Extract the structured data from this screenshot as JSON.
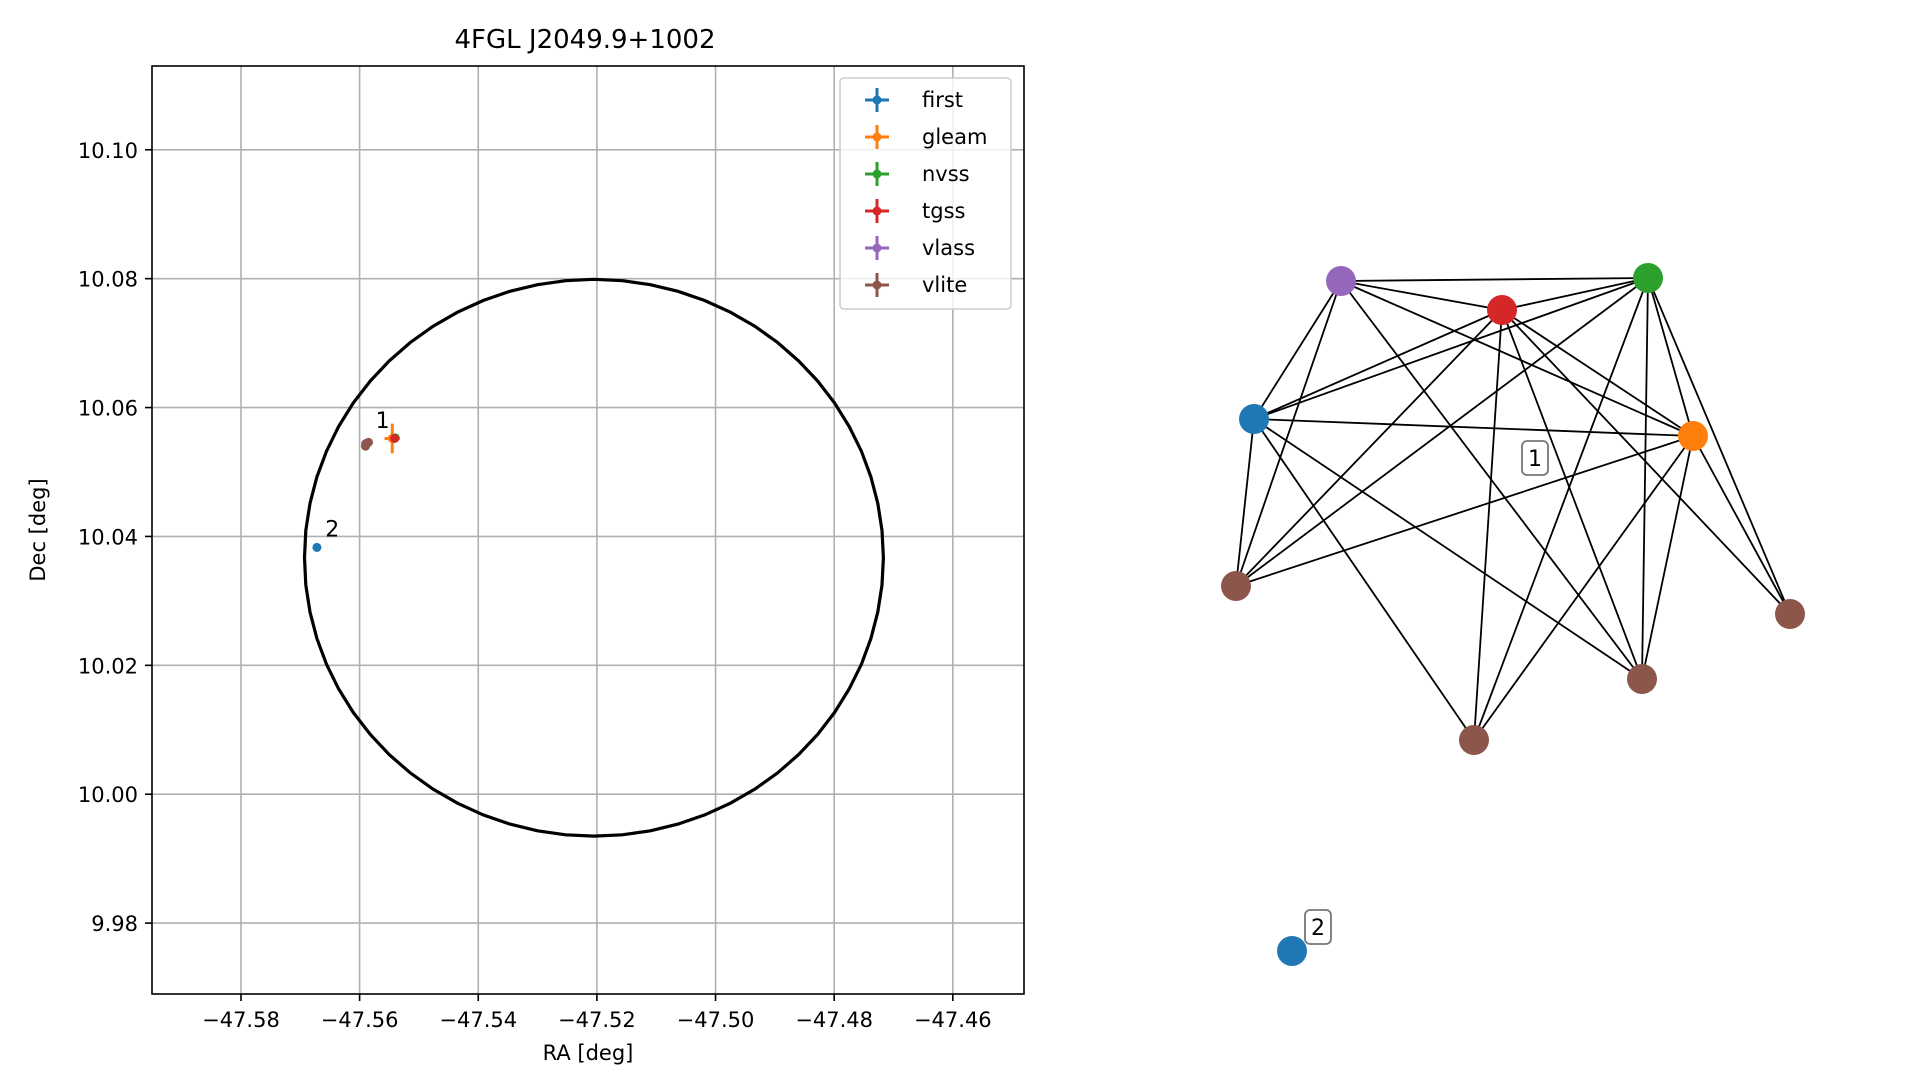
{
  "colors": {
    "first": "#1f77b4",
    "gleam": "#ff7f0e",
    "nvss": "#2ca02c",
    "tgss": "#d62728",
    "vlass": "#9467bd",
    "vlite": "#8c564b",
    "grid": "#b0b0b0",
    "ellipse": "#000000"
  },
  "chart_data": [
    {
      "type": "scatter",
      "title": "4FGL J2049.9+1002",
      "xlabel": "RA [deg]",
      "ylabel": "Dec [deg]",
      "xlim": [
        -47.595,
        -47.448
      ],
      "ylim": [
        9.969,
        10.113
      ],
      "xticks": [
        -47.58,
        -47.56,
        -47.54,
        -47.52,
        -47.5,
        -47.48,
        -47.46
      ],
      "xtick_labels": [
        "−47.58",
        "−47.56",
        "−47.54",
        "−47.52",
        "−47.50",
        "−47.48",
        "−47.46"
      ],
      "yticks": [
        9.98,
        10.0,
        10.02,
        10.04,
        10.06,
        10.08,
        10.1
      ],
      "ytick_labels": [
        "9.98",
        "10.00",
        "10.02",
        "10.04",
        "10.06",
        "10.08",
        "10.10"
      ],
      "grid": true,
      "legend_position": "top-right",
      "ellipse": {
        "center": [
          -47.5205,
          10.0367
        ],
        "semi_axis_ra": 0.0488,
        "semi_axis_dec": 0.0432
      },
      "series": [
        {
          "name": "first",
          "points": [
            {
              "ra": -47.5672,
              "dec": 10.0383,
              "ra_err": 0.0003,
              "dec_err": 0.0003
            }
          ]
        },
        {
          "name": "gleam",
          "points": [
            {
              "ra": -47.5545,
              "dec": 10.0552,
              "ra_err": 0.0013,
              "dec_err": 0.0023
            }
          ]
        },
        {
          "name": "nvss",
          "points": [
            {
              "ra": -47.554,
              "dec": 10.0553,
              "ra_err": 0.0002,
              "dec_err": 0.0002
            }
          ]
        },
        {
          "name": "tgss",
          "points": [
            {
              "ra": -47.5541,
              "dec": 10.0552,
              "ra_err": 0.0002,
              "dec_err": 0.0002
            }
          ]
        },
        {
          "name": "vlass",
          "points": [
            {
              "ra": -47.559,
              "dec": 10.0544,
              "ra_err": 0.0002,
              "dec_err": 0.0002
            }
          ]
        },
        {
          "name": "vlite",
          "points": [
            {
              "ra": -47.559,
              "dec": 10.054,
              "ra_err": 0.0004,
              "dec_err": 0.0004
            },
            {
              "ra": -47.5589,
              "dec": 10.0543,
              "ra_err": 0.0004,
              "dec_err": 0.0004
            },
            {
              "ra": -47.5587,
              "dec": 10.0545,
              "ra_err": 0.0004,
              "dec_err": 0.0004
            },
            {
              "ra": -47.5585,
              "dec": 10.0546,
              "ra_err": 0.0004,
              "dec_err": 0.0004
            }
          ]
        }
      ],
      "annotations": [
        {
          "text": "1",
          "ra": -47.5573,
          "dec": 10.0568
        },
        {
          "text": "2",
          "ra": -47.5658,
          "dec": 10.04
        }
      ]
    },
    {
      "type": "network",
      "nodes": [
        {
          "id": "vlass",
          "catalog": "vlass"
        },
        {
          "id": "nvss",
          "catalog": "nvss"
        },
        {
          "id": "tgss",
          "catalog": "tgss"
        },
        {
          "id": "first1",
          "catalog": "first"
        },
        {
          "id": "gleam",
          "catalog": "gleam"
        },
        {
          "id": "vliteA",
          "catalog": "vlite"
        },
        {
          "id": "vliteB",
          "catalog": "vlite"
        },
        {
          "id": "vliteC",
          "catalog": "vlite"
        },
        {
          "id": "vliteD",
          "catalog": "vlite"
        },
        {
          "id": "first2",
          "catalog": "first"
        }
      ],
      "edges": [
        [
          "vlass",
          "nvss"
        ],
        [
          "vlass",
          "tgss"
        ],
        [
          "vlass",
          "first1"
        ],
        [
          "vlass",
          "gleam"
        ],
        [
          "vlass",
          "vliteA"
        ],
        [
          "vlass",
          "vliteC"
        ],
        [
          "nvss",
          "tgss"
        ],
        [
          "nvss",
          "first1"
        ],
        [
          "nvss",
          "gleam"
        ],
        [
          "nvss",
          "vliteA"
        ],
        [
          "nvss",
          "vliteB"
        ],
        [
          "nvss",
          "vliteC"
        ],
        [
          "nvss",
          "vliteD"
        ],
        [
          "tgss",
          "first1"
        ],
        [
          "tgss",
          "gleam"
        ],
        [
          "tgss",
          "vliteA"
        ],
        [
          "tgss",
          "vliteB"
        ],
        [
          "tgss",
          "vliteC"
        ],
        [
          "tgss",
          "vliteD"
        ],
        [
          "first1",
          "gleam"
        ],
        [
          "first1",
          "vliteA"
        ],
        [
          "first1",
          "vliteB"
        ],
        [
          "first1",
          "vliteC"
        ],
        [
          "gleam",
          "vliteA"
        ],
        [
          "gleam",
          "vliteB"
        ],
        [
          "gleam",
          "vliteC"
        ],
        [
          "gleam",
          "vliteD"
        ]
      ],
      "group_labels": [
        "1",
        "2"
      ]
    }
  ]
}
